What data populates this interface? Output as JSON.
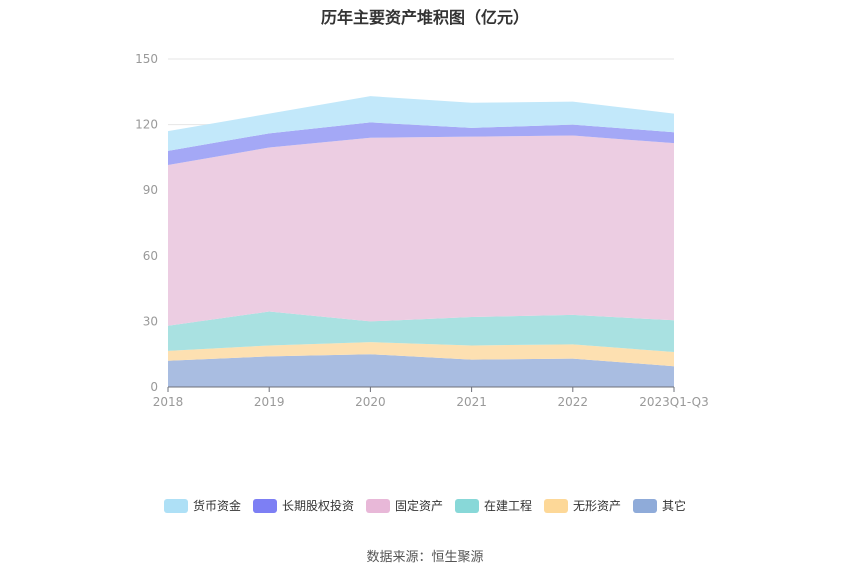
{
  "title": "历年主要资产堆积图（亿元）",
  "source": "数据来源：恒生聚源",
  "chart_data": {
    "type": "area",
    "stacked": true,
    "categories": [
      "2018",
      "2019",
      "2020",
      "2021",
      "2022",
      "2023Q1-Q3"
    ],
    "ylim": [
      0,
      150
    ],
    "yticks": [
      0,
      30,
      60,
      90,
      120,
      150
    ],
    "grid": true,
    "legend_position": "bottom",
    "series": [
      {
        "name": "其它",
        "color": "#a9bde1",
        "values": [
          12,
          14,
          15,
          12.5,
          13,
          9.5
        ]
      },
      {
        "name": "无形资产",
        "color": "#fde0b1",
        "values": [
          4.5,
          5,
          5.5,
          6.5,
          6.5,
          6.5
        ]
      },
      {
        "name": "在建工程",
        "color": "#a9e1e1",
        "values": [
          11.5,
          15.5,
          9.5,
          13,
          13.5,
          14.5
        ]
      },
      {
        "name": "固定资产",
        "color": "#eccde2",
        "values": [
          73.5,
          75,
          84,
          82.5,
          82,
          81
        ]
      },
      {
        "name": "长期股权投资",
        "color": "#a4a8f6",
        "values": [
          6.5,
          6.5,
          7,
          4,
          5,
          5
        ]
      },
      {
        "name": "货币资金",
        "color": "#c2e8fa",
        "values": [
          9,
          9,
          12,
          11.5,
          10.5,
          8.5
        ]
      }
    ]
  },
  "legend": [
    {
      "label": "货币资金",
      "color": "#aee0f6"
    },
    {
      "label": "长期股权投资",
      "color": "#7d7ff4"
    },
    {
      "label": "固定资产",
      "color": "#e8b8d8"
    },
    {
      "label": "在建工程",
      "color": "#88d8d8"
    },
    {
      "label": "无形资产",
      "color": "#fdd898"
    },
    {
      "label": "其它",
      "color": "#8fabd9"
    }
  ]
}
